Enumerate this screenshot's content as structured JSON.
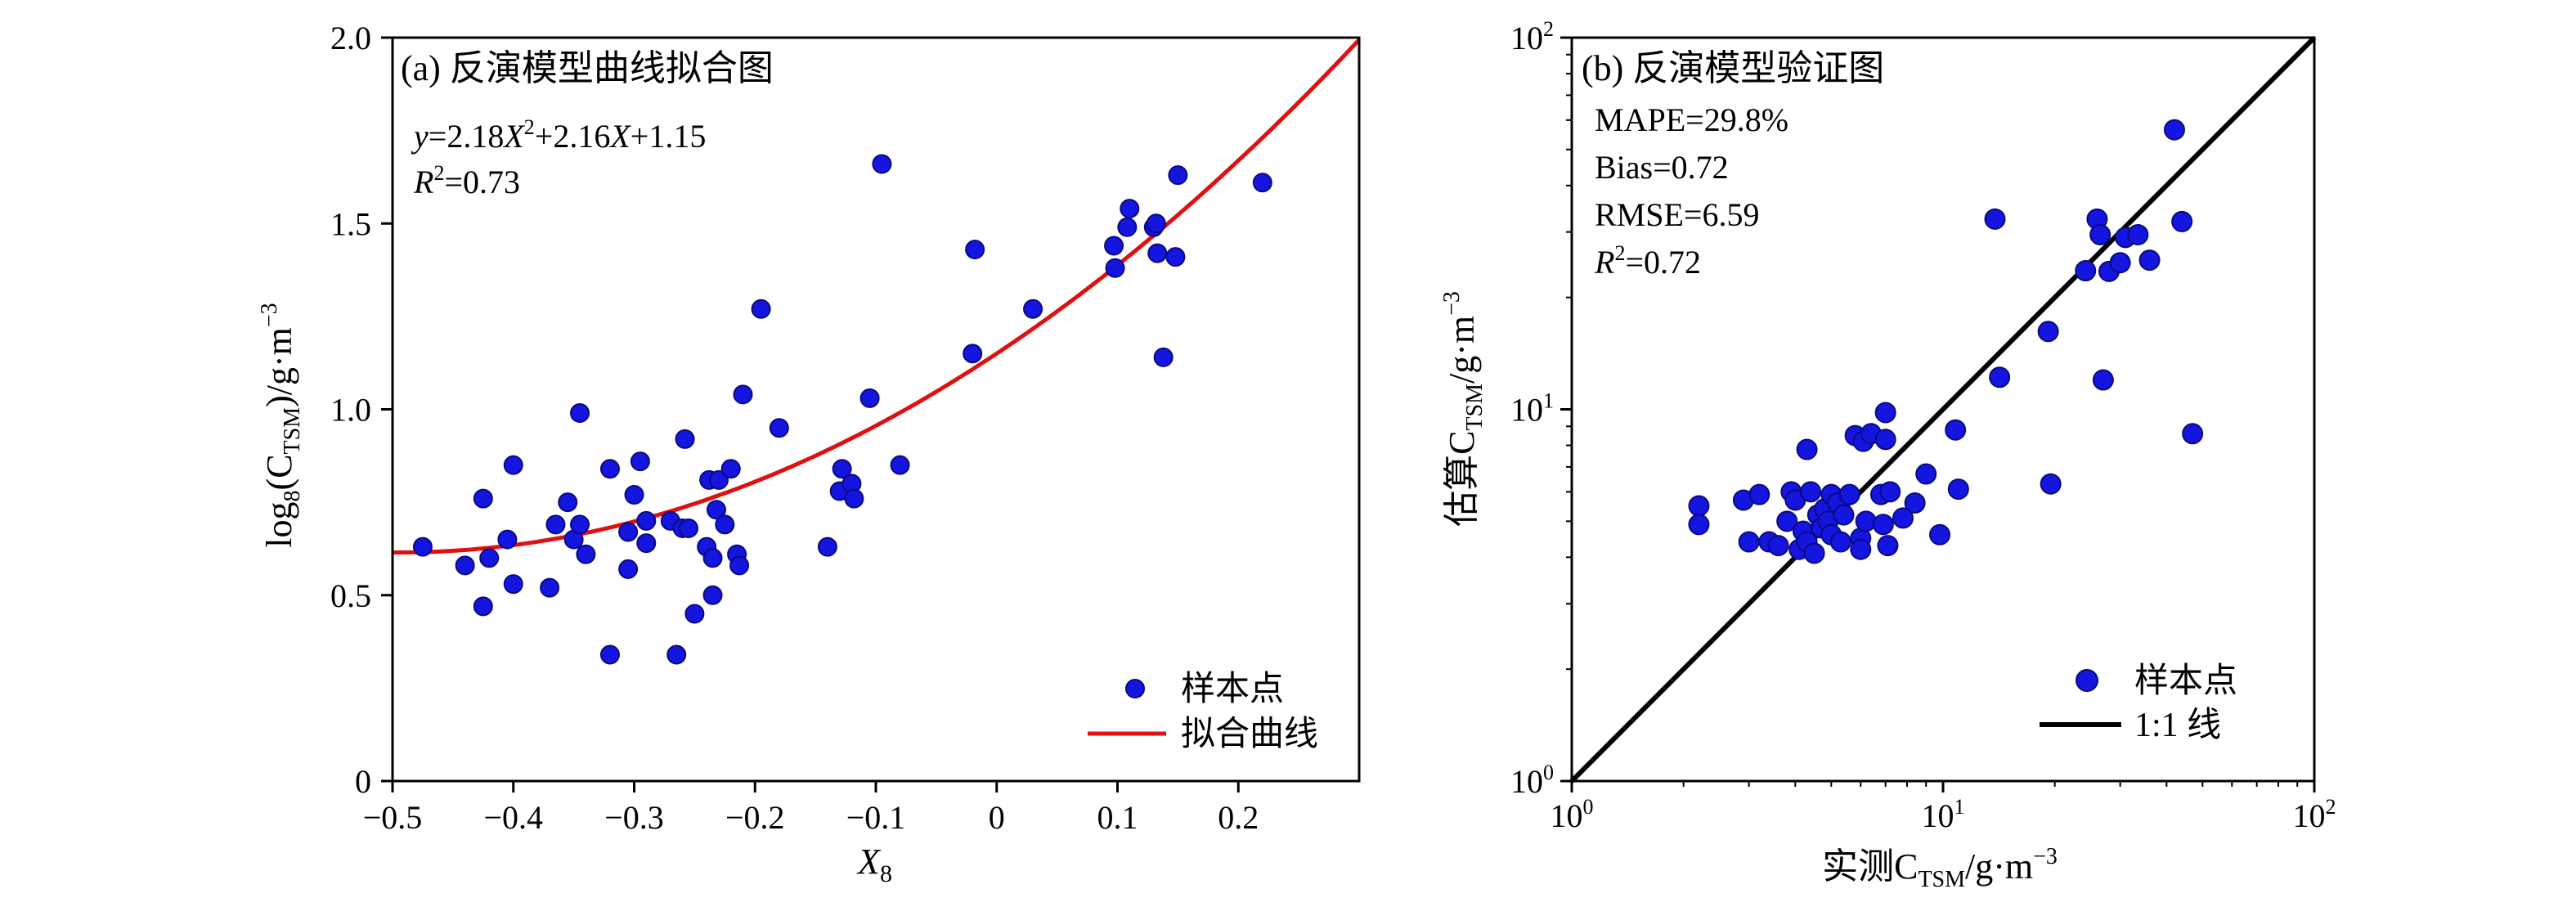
{
  "chart_data": [
    {
      "type": "scatter",
      "title": "(a) 反演模型曲线拟合图",
      "equation": {
        "y": "y",
        "eq": "=2.18",
        "x": "X",
        "sup": "2",
        "mid": "+2.16",
        "x2": "X",
        "end": "+1.15"
      },
      "r2": {
        "r": "R",
        "sup": "2",
        "val": "=0.73"
      },
      "xlabel": {
        "main": "X",
        "sub": "8"
      },
      "ylabel": {
        "pre": "log",
        "sub1": "8",
        "mid": "(C",
        "sub2": "TSM",
        "post": ")/g·m",
        "sup": "−3"
      },
      "xlim": [
        -0.5,
        0.3
      ],
      "ylim": [
        0,
        2.0
      ],
      "xticks": [
        -0.5,
        -0.4,
        -0.3,
        -0.2,
        -0.1,
        0,
        0.1,
        0.2
      ],
      "xtick_labels": [
        "−0.5",
        "−0.4",
        "−0.3",
        "−0.2",
        "−0.1",
        "0",
        "0.1",
        "0.2"
      ],
      "yticks": [
        0,
        0.5,
        1.0,
        1.5,
        2.0
      ],
      "ytick_labels": [
        "0",
        "0.5",
        "1.0",
        "1.5",
        "2.0"
      ],
      "fit": {
        "a": 2.18,
        "b": 2.16,
        "c": 1.15,
        "x_range": [
          -0.5,
          0.3
        ],
        "color": "#e01010"
      },
      "marker_color": "#1515e0",
      "legend": {
        "position": "bottom-right",
        "points": "样本点",
        "curve": "拟合曲线"
      },
      "points": [
        [
          -0.475,
          0.63
        ],
        [
          -0.44,
          0.58
        ],
        [
          -0.425,
          0.76
        ],
        [
          -0.42,
          0.6
        ],
        [
          -0.425,
          0.47
        ],
        [
          -0.405,
          0.65
        ],
        [
          -0.4,
          0.53
        ],
        [
          -0.4,
          0.85
        ],
        [
          -0.37,
          0.52
        ],
        [
          -0.365,
          0.69
        ],
        [
          -0.355,
          0.75
        ],
        [
          -0.35,
          0.65
        ],
        [
          -0.345,
          0.69
        ],
        [
          -0.345,
          0.99
        ],
        [
          -0.34,
          0.61
        ],
        [
          -0.32,
          0.84
        ],
        [
          -0.32,
          0.34
        ],
        [
          -0.305,
          0.57
        ],
        [
          -0.305,
          0.67
        ],
        [
          -0.3,
          0.77
        ],
        [
          -0.295,
          0.86
        ],
        [
          -0.29,
          0.7
        ],
        [
          -0.29,
          0.64
        ],
        [
          -0.27,
          0.7
        ],
        [
          -0.265,
          0.34
        ],
        [
          -0.26,
          0.68
        ],
        [
          -0.258,
          0.92
        ],
        [
          -0.255,
          0.68
        ],
        [
          -0.25,
          0.45
        ],
        [
          -0.24,
          0.63
        ],
        [
          -0.238,
          0.81
        ],
        [
          -0.235,
          0.5
        ],
        [
          -0.235,
          0.6
        ],
        [
          -0.232,
          0.73
        ],
        [
          -0.23,
          0.81
        ],
        [
          -0.225,
          0.69
        ],
        [
          -0.22,
          0.84
        ],
        [
          -0.215,
          0.61
        ],
        [
          -0.213,
          0.58
        ],
        [
          -0.21,
          1.04
        ],
        [
          -0.195,
          1.27
        ],
        [
          -0.18,
          0.95
        ],
        [
          -0.14,
          0.63
        ],
        [
          -0.13,
          0.78
        ],
        [
          -0.128,
          0.84
        ],
        [
          -0.12,
          0.8
        ],
        [
          -0.118,
          0.76
        ],
        [
          -0.105,
          1.03
        ],
        [
          -0.095,
          1.66
        ],
        [
          -0.08,
          0.85
        ],
        [
          -0.02,
          1.15
        ],
        [
          -0.018,
          1.43
        ],
        [
          0.03,
          1.27
        ],
        [
          0.097,
          1.44
        ],
        [
          0.098,
          1.38
        ],
        [
          0.108,
          1.49
        ],
        [
          0.11,
          1.54
        ],
        [
          0.13,
          1.49
        ],
        [
          0.132,
          1.5
        ],
        [
          0.133,
          1.42
        ],
        [
          0.138,
          1.14
        ],
        [
          0.148,
          1.41
        ],
        [
          0.15,
          1.63
        ],
        [
          0.22,
          1.61
        ]
      ]
    },
    {
      "type": "scatter",
      "title": "(b) 反演模型验证图",
      "stats": [
        {
          "name": "MAPE",
          "text": "MAPE=29.8%"
        },
        {
          "name": "bias",
          "text": "Bias=0.72"
        },
        {
          "name": "rmse",
          "text": "RMSE=6.59"
        }
      ],
      "r2": {
        "r": "R",
        "sup": "2",
        "val": "=0.72"
      },
      "xlabel": {
        "pre": "实测C",
        "sub": "TSM",
        "post": "/g·m",
        "sup": "−3"
      },
      "ylabel": {
        "pre": "估算C",
        "sub": "TSM",
        "post": "/g·m",
        "sup": "−3"
      },
      "xscale": "log",
      "yscale": "log",
      "xlim": [
        1,
        100
      ],
      "ylim": [
        1,
        100
      ],
      "ticks": [
        {
          "value": 1,
          "base": "10",
          "exp": "0"
        },
        {
          "value": 10,
          "base": "10",
          "exp": "1"
        },
        {
          "value": 100,
          "base": "10",
          "exp": "2"
        }
      ],
      "reference_line": {
        "from": [
          1,
          1
        ],
        "to": [
          100,
          100
        ],
        "color": "#000000"
      },
      "marker_color": "#1515e0",
      "legend": {
        "position": "bottom-right",
        "points": "样本点",
        "line": "1:1 线"
      },
      "points": [
        [
          2.2,
          5.5
        ],
        [
          2.2,
          4.9
        ],
        [
          2.9,
          5.7
        ],
        [
          3.0,
          4.4
        ],
        [
          3.2,
          5.9
        ],
        [
          3.4,
          4.4
        ],
        [
          3.6,
          4.3
        ],
        [
          3.8,
          5.0
        ],
        [
          3.9,
          6.0
        ],
        [
          4.0,
          5.7
        ],
        [
          4.1,
          4.2
        ],
        [
          4.2,
          4.7
        ],
        [
          4.3,
          4.4
        ],
        [
          4.3,
          7.8
        ],
        [
          4.4,
          6.0
        ],
        [
          4.5,
          4.1
        ],
        [
          4.6,
          5.2
        ],
        [
          4.7,
          4.8
        ],
        [
          4.8,
          5.4
        ],
        [
          4.9,
          5.0
        ],
        [
          5.0,
          4.6
        ],
        [
          5.0,
          5.9
        ],
        [
          5.2,
          5.6
        ],
        [
          5.3,
          4.4
        ],
        [
          5.4,
          5.2
        ],
        [
          5.6,
          5.9
        ],
        [
          5.8,
          8.5
        ],
        [
          6.0,
          4.5
        ],
        [
          6.0,
          4.2
        ],
        [
          6.1,
          8.2
        ],
        [
          6.2,
          5.0
        ],
        [
          6.4,
          8.6
        ],
        [
          6.8,
          5.9
        ],
        [
          6.9,
          4.9
        ],
        [
          7.0,
          8.3
        ],
        [
          7.0,
          9.8
        ],
        [
          7.1,
          4.3
        ],
        [
          7.2,
          6.0
        ],
        [
          7.8,
          5.1
        ],
        [
          8.4,
          5.6
        ],
        [
          9.0,
          6.7
        ],
        [
          9.8,
          4.6
        ],
        [
          10.8,
          8.8
        ],
        [
          11.0,
          6.1
        ],
        [
          13.8,
          32.5
        ],
        [
          14.2,
          12.2
        ],
        [
          19.2,
          16.2
        ],
        [
          19.5,
          6.3
        ],
        [
          24.2,
          23.6
        ],
        [
          26.0,
          32.5
        ],
        [
          26.5,
          29.5
        ],
        [
          27.0,
          12.0
        ],
        [
          28.0,
          23.5
        ],
        [
          30.0,
          24.8
        ],
        [
          31.0,
          29.0
        ],
        [
          33.5,
          29.5
        ],
        [
          36.0,
          25.2
        ],
        [
          42.0,
          56.5
        ],
        [
          44.0,
          32.0
        ],
        [
          47.0,
          8.6
        ]
      ]
    }
  ]
}
